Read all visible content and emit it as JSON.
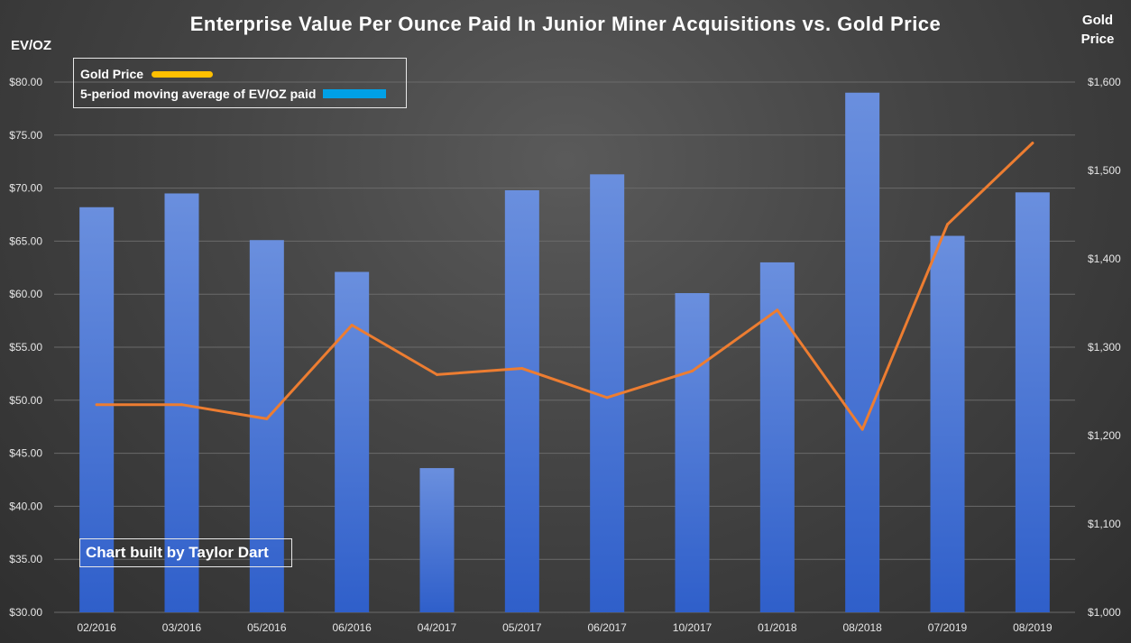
{
  "chart_data": {
    "type": "bar",
    "title": "Enterprise Value Per Ounce Paid In Junior Miner Acquisitions vs. Gold Price",
    "ylabel": "EV/OZ",
    "y2label": [
      "Gold",
      "Price"
    ],
    "categories": [
      "02/2016",
      "03/2016",
      "05/2016",
      "06/2016",
      "04/2017",
      "05/2017",
      "06/2017",
      "10/2017",
      "01/2018",
      "08/2018",
      "07/2019",
      "08/2019"
    ],
    "ylim": [
      30,
      80
    ],
    "y2lim": [
      1000,
      1600
    ],
    "y_ticks": [
      "$30.00",
      "$35.00",
      "$40.00",
      "$45.00",
      "$50.00",
      "$55.00",
      "$60.00",
      "$65.00",
      "$70.00",
      "$75.00",
      "$80.00"
    ],
    "y2_ticks": [
      "$1,000",
      "$1,100",
      "$1,200",
      "$1,300",
      "$1,400",
      "$1,500",
      "$1,600"
    ],
    "grid": true,
    "legend_position": "top-left",
    "series": [
      {
        "name": "5-period moving average of EV/OZ paid",
        "type": "bar",
        "axis": "left",
        "color": "#4a78d8",
        "values": [
          68.2,
          69.5,
          65.1,
          62.1,
          43.6,
          69.8,
          71.3,
          60.1,
          63.0,
          79.0,
          65.5,
          69.6
        ]
      },
      {
        "name": "Gold Price",
        "type": "line",
        "axis": "right",
        "color": "#ed7d31",
        "values": [
          1235,
          1235,
          1219,
          1325,
          1269,
          1276,
          1243,
          1273,
          1342,
          1207,
          1439,
          1531
        ]
      }
    ],
    "legend": [
      {
        "label": "Gold Price",
        "color": "#ffc000"
      },
      {
        "label": "5-period moving average of EV/OZ paid",
        "color": "#00a0e6"
      }
    ],
    "annotation": "Chart built by Taylor Dart"
  }
}
